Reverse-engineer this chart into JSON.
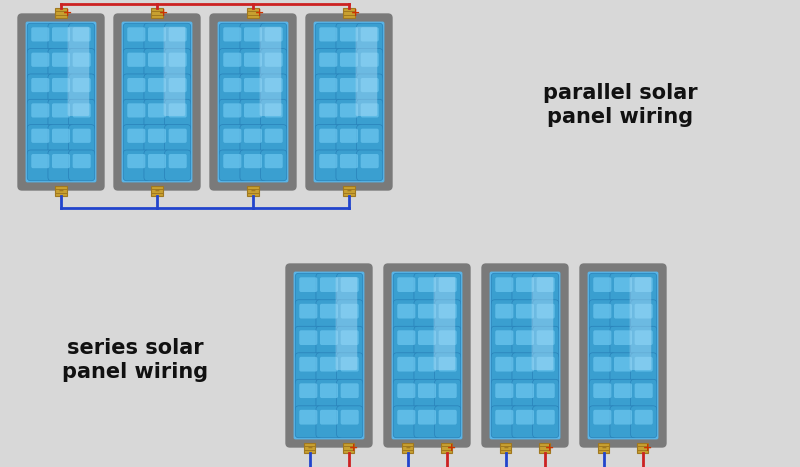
{
  "bg_color": "#d8d8d8",
  "panel_frame_color": "#7a7a7a",
  "panel_frame_inner": "#888888",
  "panel_bg_color": "#5ab5e8",
  "panel_cell_light": "#6ec8f0",
  "panel_cell_dark": "#3a9fd0",
  "panel_cell_border": "#2880b8",
  "panel_highlight": "#aaddf8",
  "connector_color": "#c8a030",
  "connector_dark": "#a07820",
  "red_wire": "#cc2222",
  "blue_wire": "#2244cc",
  "text_color": "#111111",
  "plus_color": "#cc3300",
  "title1": "parallel solar\npanel wiring",
  "title2": "series solar\npanel wiring",
  "parallel_panels": 4,
  "series_panels": 4
}
